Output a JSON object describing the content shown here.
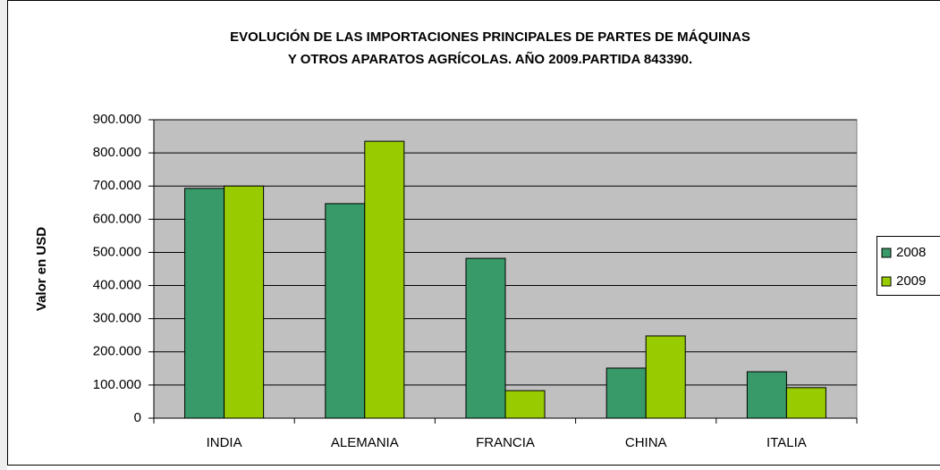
{
  "chart_data": {
    "type": "bar",
    "title": [
      "EVOLUCIÓN DE LAS IMPORTACIONES PRINCIPALES DE PARTES DE MÁQUINAS",
      "Y OTROS APARATOS AGRÍCOLAS. AÑO 2009.PARTIDA 843390."
    ],
    "y_label": "Valor en USD",
    "categories": [
      "INDIA",
      "ALEMANIA",
      "FRANCIA",
      "CHINA",
      "ITALIA"
    ],
    "series": [
      {
        "name": "2008",
        "color": "#389a68",
        "values": [
          693000,
          647000,
          482000,
          151000,
          140000
        ]
      },
      {
        "name": "2009",
        "color": "#99cc00",
        "values": [
          700000,
          835000,
          83000,
          248000,
          92000
        ]
      }
    ],
    "ylim": [
      0,
      900000
    ],
    "yticks": [
      0,
      {
        "value": 100000,
        "label": "100.000"
      },
      {
        "value": 200000,
        "label": "200.000"
      },
      {
        "value": 300000,
        "label": "300.000"
      },
      {
        "value": 400000,
        "label": "400.000"
      },
      {
        "value": 500000,
        "label": "500.000"
      },
      {
        "value": 600000,
        "label": "600.000"
      },
      {
        "value": 700000,
        "label": "700.000"
      },
      {
        "value": 800000,
        "label": "800.000"
      },
      {
        "value": 900000,
        "label": "900.000"
      }
    ],
    "grid": true,
    "plot_background": "#c0c0c0",
    "legend": "right"
  }
}
